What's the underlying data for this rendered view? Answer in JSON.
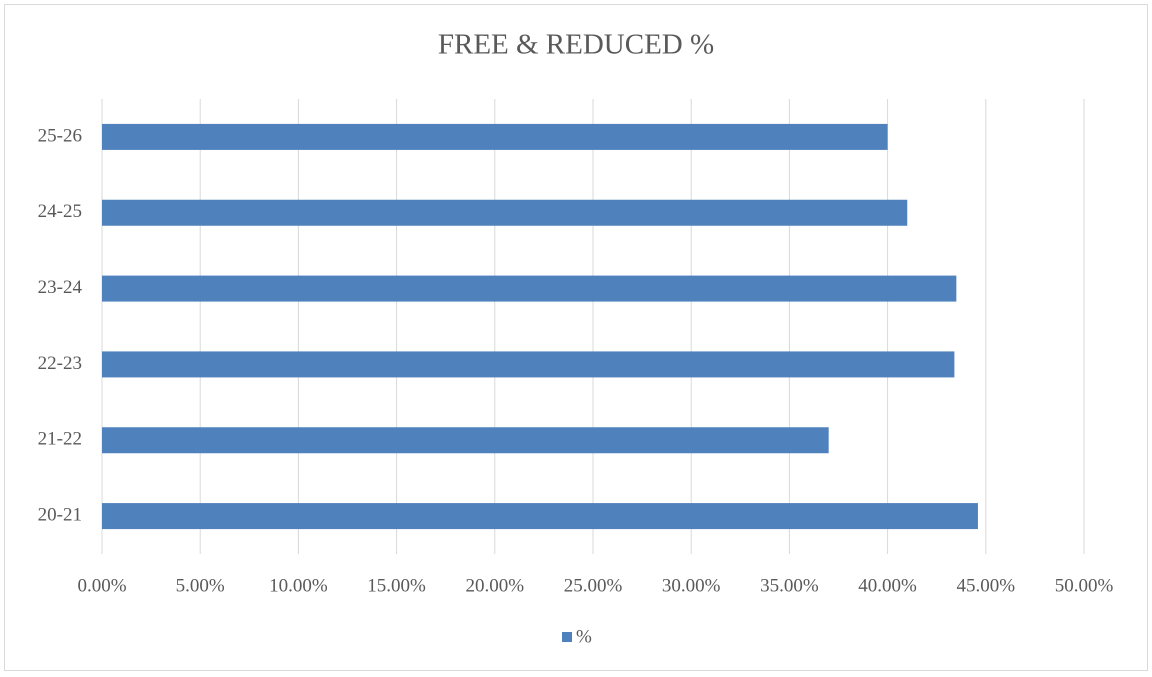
{
  "chart_data": {
    "type": "barh",
    "title": "FREE & REDUCED %",
    "categories": [
      "20-21",
      "21-22",
      "22-23",
      "23-24",
      "24-25",
      "25-26"
    ],
    "series": [
      {
        "name": "%",
        "color": "#4f81bd",
        "values": [
          44.6,
          37.0,
          43.4,
          43.5,
          41.0,
          40.0
        ]
      }
    ],
    "xlim": [
      0,
      50
    ],
    "xticks": [
      {
        "value": 0,
        "label": "0.00%"
      },
      {
        "value": 5,
        "label": "5.00%"
      },
      {
        "value": 10,
        "label": "10.00%"
      },
      {
        "value": 15,
        "label": "15.00%"
      },
      {
        "value": 20,
        "label": "20.00%"
      },
      {
        "value": 25,
        "label": "25.00%"
      },
      {
        "value": 30,
        "label": "30.00%"
      },
      {
        "value": 35,
        "label": "35.00%"
      },
      {
        "value": 40,
        "label": "40.00%"
      },
      {
        "value": 45,
        "label": "45.00%"
      },
      {
        "value": 50,
        "label": "50.00%"
      }
    ],
    "grid": true,
    "legend": "bottom"
  }
}
